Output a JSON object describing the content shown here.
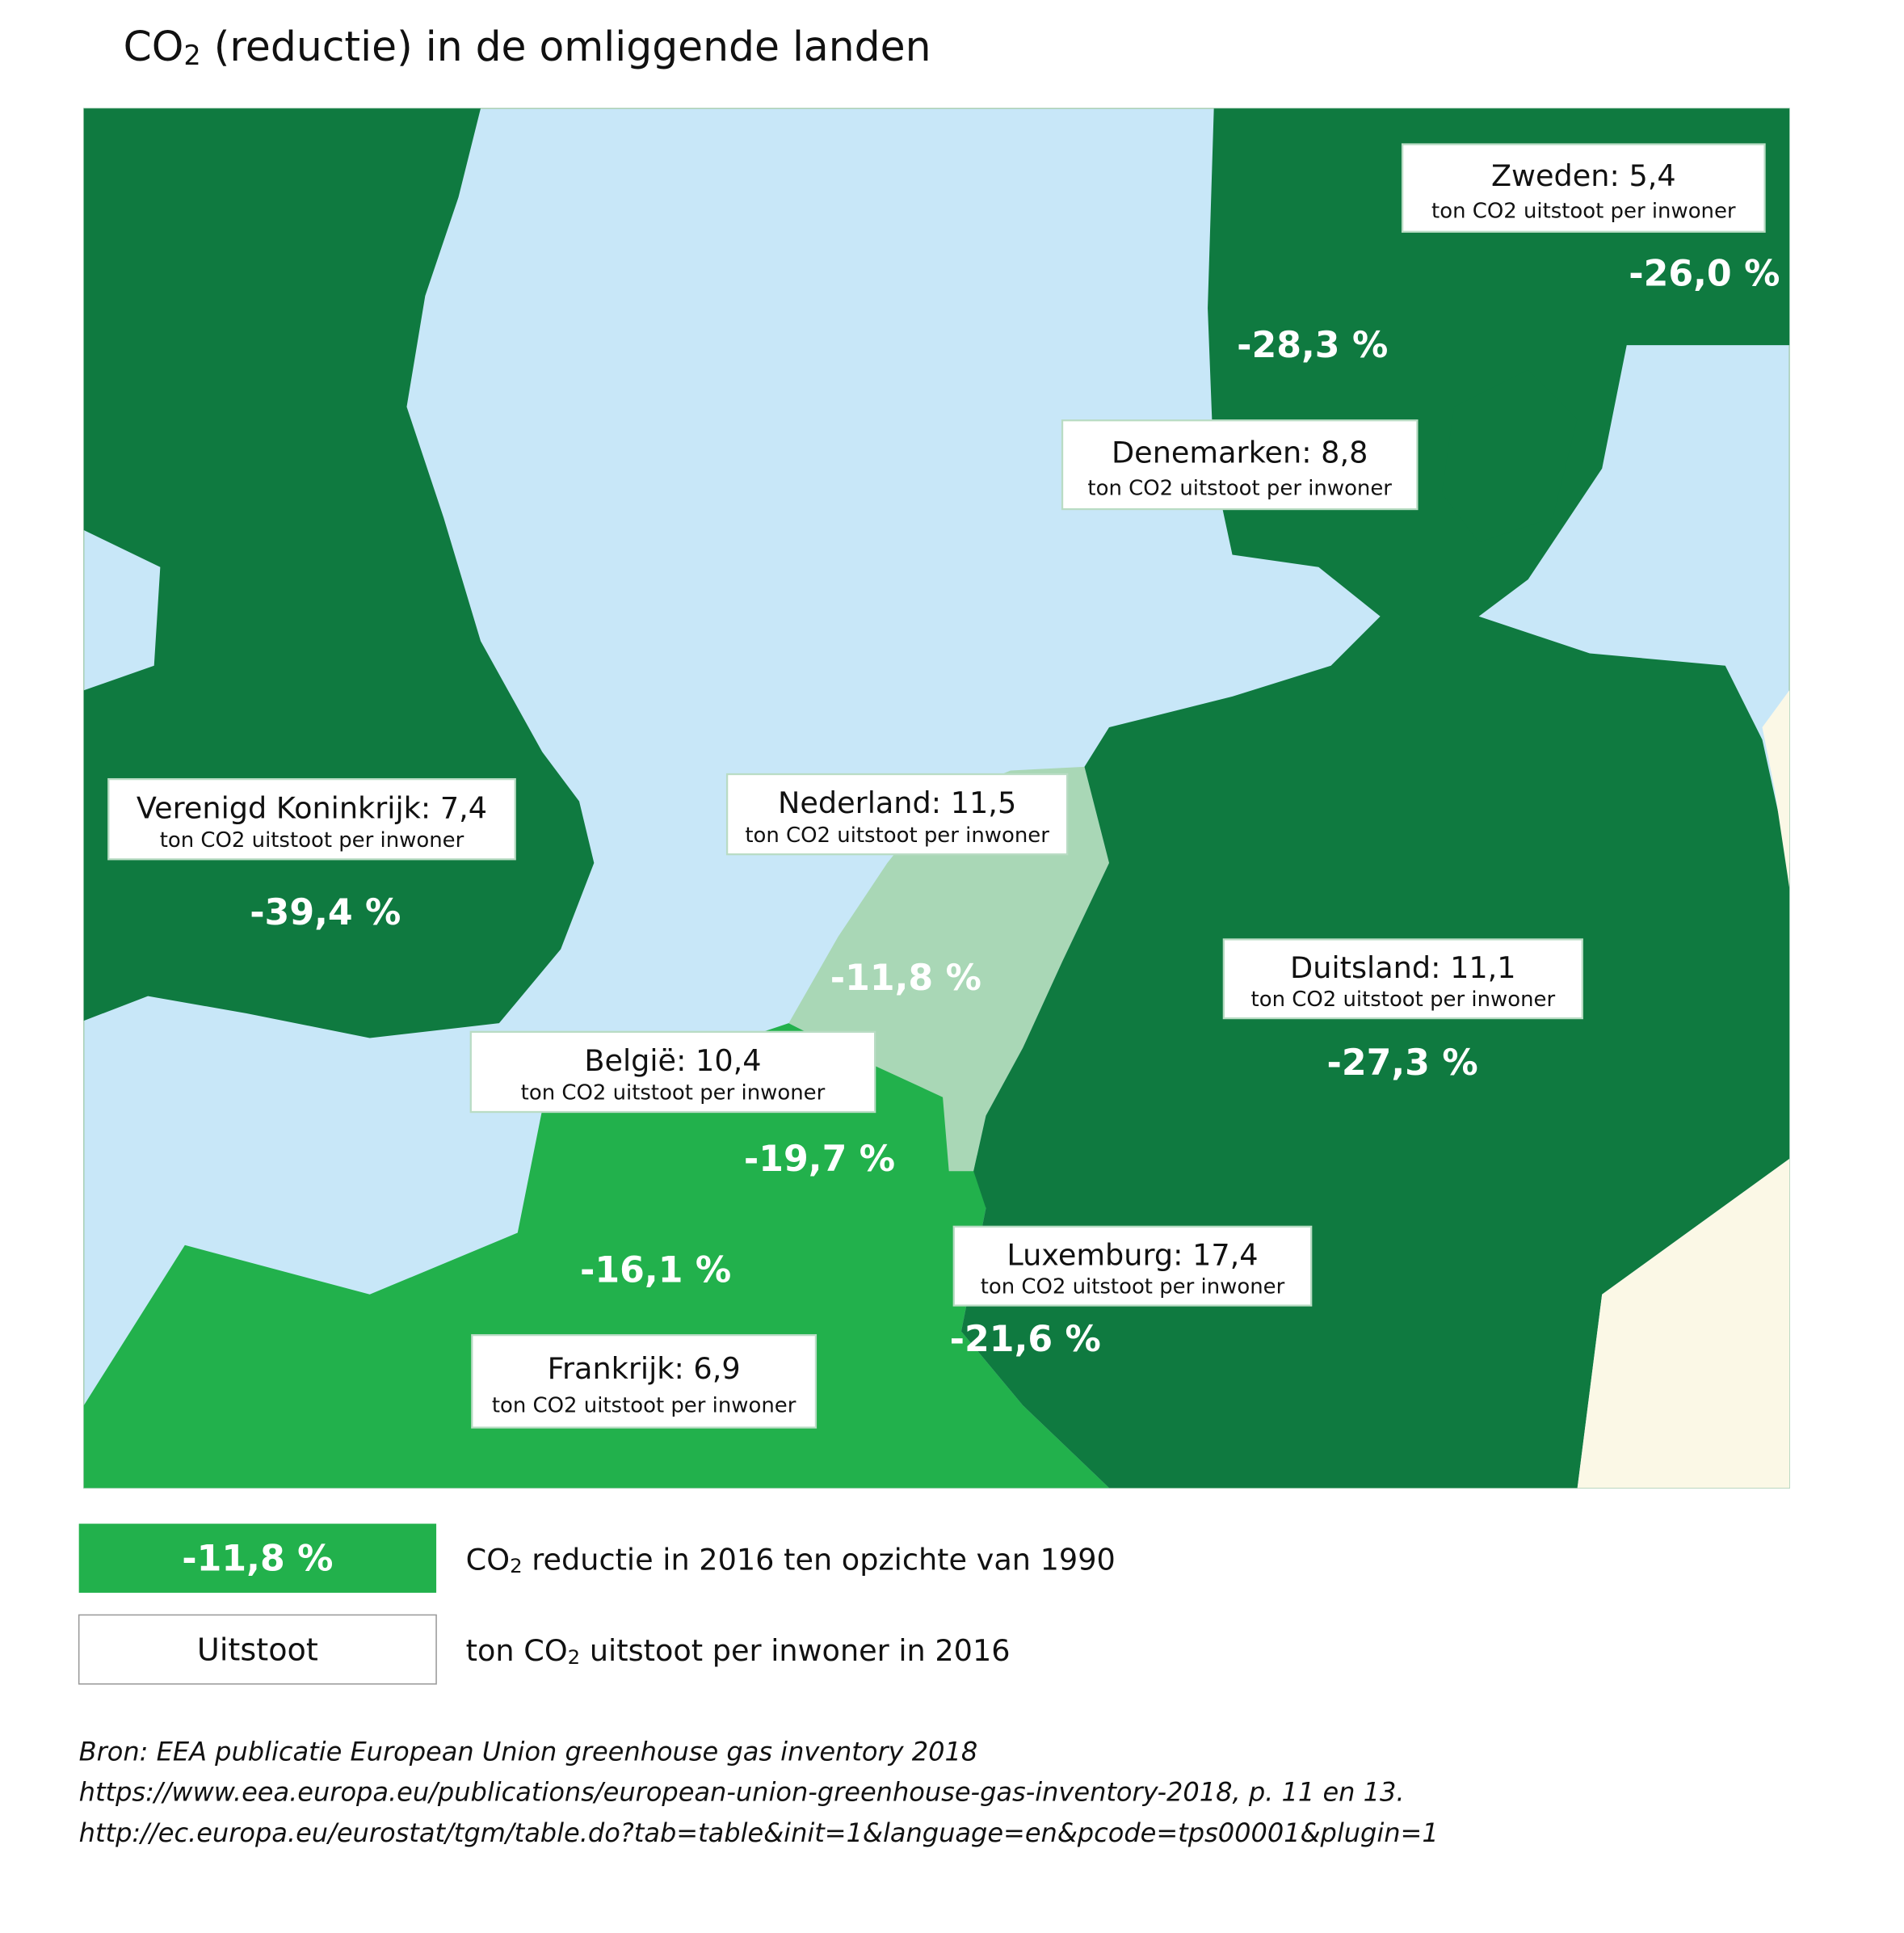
{
  "title": {
    "before": "CO",
    "sub": "2",
    "after": " (reductie) in de omliggende landen"
  },
  "countries": [
    {
      "label": "Zweden: 5,4",
      "unit": "ton CO2 uitstoot per inwoner",
      "reduction": "-26,0 %"
    },
    {
      "label": "Denemarken: 8,8",
      "unit": "ton CO2 uitstoot per inwoner",
      "reduction": "-28,3 %"
    },
    {
      "label": "Verenigd Koninkrijk: 7,4",
      "unit": "ton CO2 uitstoot per inwoner",
      "reduction": "-39,4 %"
    },
    {
      "label": "Nederland: 11,5",
      "unit": "ton CO2 uitstoot per inwoner",
      "reduction": "-11,8 %"
    },
    {
      "label": "Duitsland: 11,1",
      "unit": "ton CO2 uitstoot per inwoner",
      "reduction": "-27,3 %"
    },
    {
      "label": "België: 10,4",
      "unit": "ton CO2 uitstoot per inwoner",
      "reduction": "-19,7 %"
    },
    {
      "label": "Luxemburg: 17,4",
      "unit": "ton CO2 uitstoot per inwoner",
      "reduction": "-21,6 %"
    },
    {
      "label": "Frankrijk: 6,9",
      "unit": "ton CO2 uitstoot per inwoner",
      "reduction": "-16,1 %"
    }
  ],
  "legend": [
    {
      "key": "-11,8 %",
      "before": "CO",
      "sub": "2",
      "after": " reductie in 2016 ten opzichte van 1990"
    },
    {
      "key": "Uitstoot",
      "before": "ton CO",
      "sub": "2",
      "after": " uitstoot per inwoner in 2016"
    }
  ],
  "source": [
    "Bron: EEA publicatie European Union greenhouse gas inventory 2018",
    "https://www.eea.europa.eu/publications/european-union-greenhouse-gas-inventory-2018, p. 11 en 13.",
    "http://ec.europa.eu/eurostat/tgm/table.do?tab=table&init=1&language=en&pcode=tps00001&plugin=1"
  ]
}
